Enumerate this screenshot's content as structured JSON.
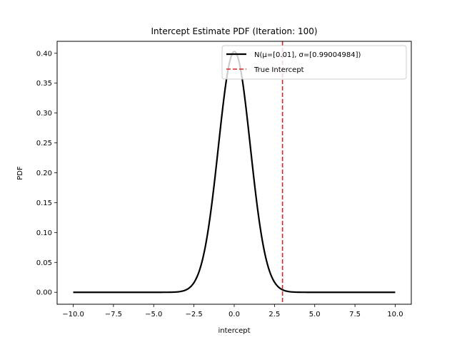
{
  "chart_data": {
    "type": "line",
    "title": "Intercept Estimate PDF (Iteration: 100)",
    "xlabel": "intercept",
    "ylabel": "PDF",
    "xlim": [
      -11.0,
      11.0
    ],
    "ylim": [
      -0.02,
      0.42
    ],
    "x_ticks": [
      -10.0,
      -7.5,
      -5.0,
      -2.5,
      0.0,
      2.5,
      5.0,
      7.5,
      10.0
    ],
    "x_tick_labels": [
      "−10.0",
      "−7.5",
      "−5.0",
      "−2.5",
      "0.0",
      "2.5",
      "5.0",
      "7.5",
      "10.0"
    ],
    "y_ticks": [
      0.0,
      0.05,
      0.1,
      0.15,
      0.2,
      0.25,
      0.3,
      0.35,
      0.4
    ],
    "y_tick_labels": [
      "0.00",
      "0.05",
      "0.10",
      "0.15",
      "0.20",
      "0.25",
      "0.30",
      "0.35",
      "0.40"
    ],
    "grid": false,
    "legend_position": "top-right",
    "series": [
      {
        "name": "N(μ=[0.01], σ=[0.99004984])",
        "kind": "normal-pdf",
        "mu": 0.01,
        "sigma": 0.99004984,
        "x_range": [
          -10.0,
          10.0
        ],
        "color": "#000000",
        "style": "solid"
      }
    ],
    "vertical_lines": [
      {
        "name": "True Intercept",
        "x": 3.0,
        "color": "#d62728",
        "style": "dashed"
      }
    ]
  }
}
